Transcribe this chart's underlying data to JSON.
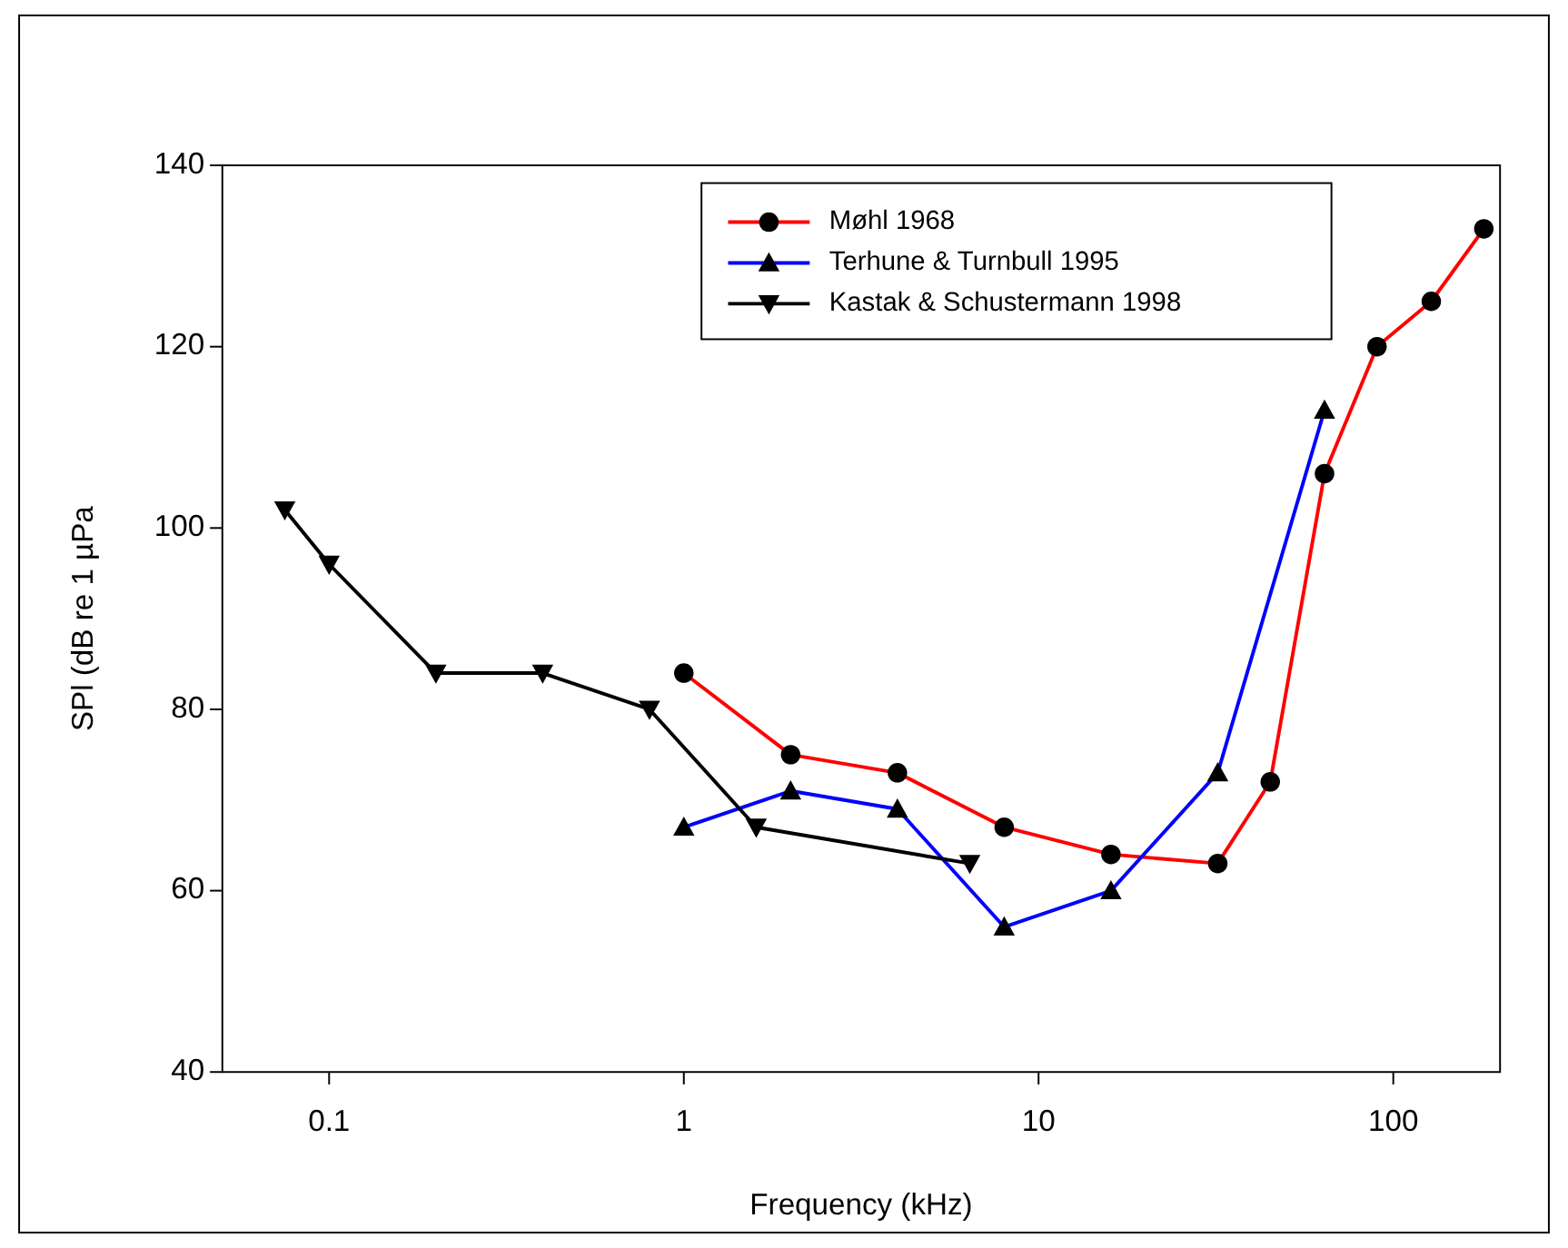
{
  "chart_data": {
    "type": "line",
    "xlabel": "Frequency (kHz)",
    "ylabel": "SPl (dB re 1 µPa",
    "log": "x",
    "xlim": [
      0.05,
      200
    ],
    "xticks": [
      0.1,
      1,
      10,
      100
    ],
    "ylim": [
      40,
      140
    ],
    "yticks": [
      40,
      60,
      80,
      100,
      120,
      140
    ],
    "grid": false,
    "legend": "top right",
    "series": [
      {
        "name": "Møhl 1968",
        "color": "#ff0000",
        "marker": "circle",
        "x": [
          1,
          2,
          4,
          8,
          16,
          32,
          45,
          64,
          90,
          128,
          180
        ],
        "values": [
          84,
          75,
          73,
          67,
          64,
          63,
          72,
          106,
          120,
          125,
          133
        ]
      },
      {
        "name": "Terhune & Turnbull 1995",
        "color": "#0000ff",
        "marker": "triangle",
        "x": [
          1,
          2,
          4,
          8,
          16,
          32,
          64
        ],
        "values": [
          67,
          71,
          69,
          56,
          60,
          73,
          113
        ]
      },
      {
        "name": "Kastak & Schustermann 1998",
        "color": "#000000",
        "marker": "triangle-down",
        "x": [
          0.075,
          0.1,
          0.2,
          0.4,
          0.8,
          1.6,
          6.4
        ],
        "values": [
          102,
          96,
          84,
          84,
          80,
          67,
          63
        ]
      }
    ]
  }
}
